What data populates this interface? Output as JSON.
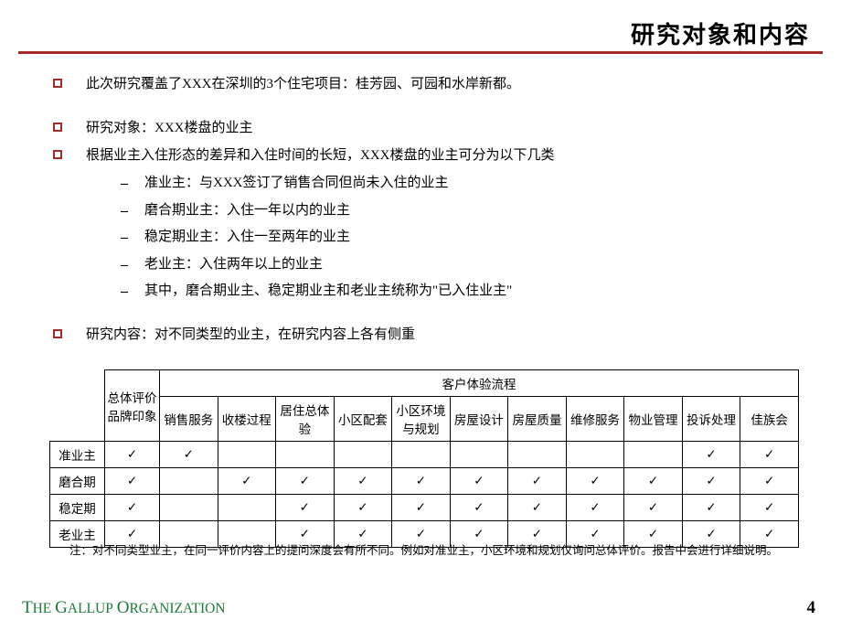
{
  "title": "研究对象和内容",
  "bullets": {
    "b0": "此次研究覆盖了XXX在深圳的3个住宅项目：桂芳园、可园和水岸新都。",
    "b1": "研究对象：XXX楼盘的业主",
    "b2": "根据业主入住形态的差异和入住时间的长短，XXX楼盘的业主可分为以下几类",
    "b3": "研究内容：对不同类型的业主，在研究内容上各有侧重"
  },
  "subs": {
    "s0": "准业主：与XXX签订了销售合同但尚未入住的业主",
    "s1": "磨合期业主：入住一年以内的业主",
    "s2": "稳定期业主：入住一至两年的业主",
    "s3": "老业主：入住两年以上的业主",
    "s4": "其中，磨合期业主、稳定期业主和老业主统称为\"已入住业主\""
  },
  "dash": "–",
  "table": {
    "group_header": "客户体验流程",
    "col0": "总体评价品牌印象",
    "cols": {
      "c1": "销售服务",
      "c2": "收楼过程",
      "c3": "居住总体验",
      "c4": "小区配套",
      "c5": "小区环境与规划",
      "c6": "房屋设计",
      "c7": "房屋质量",
      "c8": "维修服务",
      "c9": "物业管理",
      "c10": "投诉处理",
      "c11": "佳族会"
    },
    "rows": {
      "r0": "准业主",
      "r1": "磨合期",
      "r2": "稳定期",
      "r3": "老业主"
    },
    "check": "✓",
    "matrix": [
      [
        1,
        1,
        0,
        0,
        0,
        0,
        0,
        0,
        0,
        0,
        1,
        1
      ],
      [
        1,
        0,
        1,
        1,
        1,
        1,
        1,
        1,
        1,
        1,
        1,
        1
      ],
      [
        1,
        0,
        0,
        1,
        1,
        1,
        1,
        1,
        1,
        1,
        1,
        1
      ],
      [
        1,
        0,
        0,
        1,
        1,
        1,
        1,
        1,
        1,
        1,
        1,
        1
      ]
    ]
  },
  "footnote": "注：对不同类型业主，在同一评价内容上的提问深度会有所不同。例如对准业主，小区环境和规划仅询问总体评价。报告中会进行详细说明。",
  "footer": {
    "brand_html": "T|HE | G|ALLUP | O|RGANIZATION",
    "page": "4"
  },
  "colors": {
    "accent": "#a52a2a",
    "brand": "#1a7a3a"
  }
}
